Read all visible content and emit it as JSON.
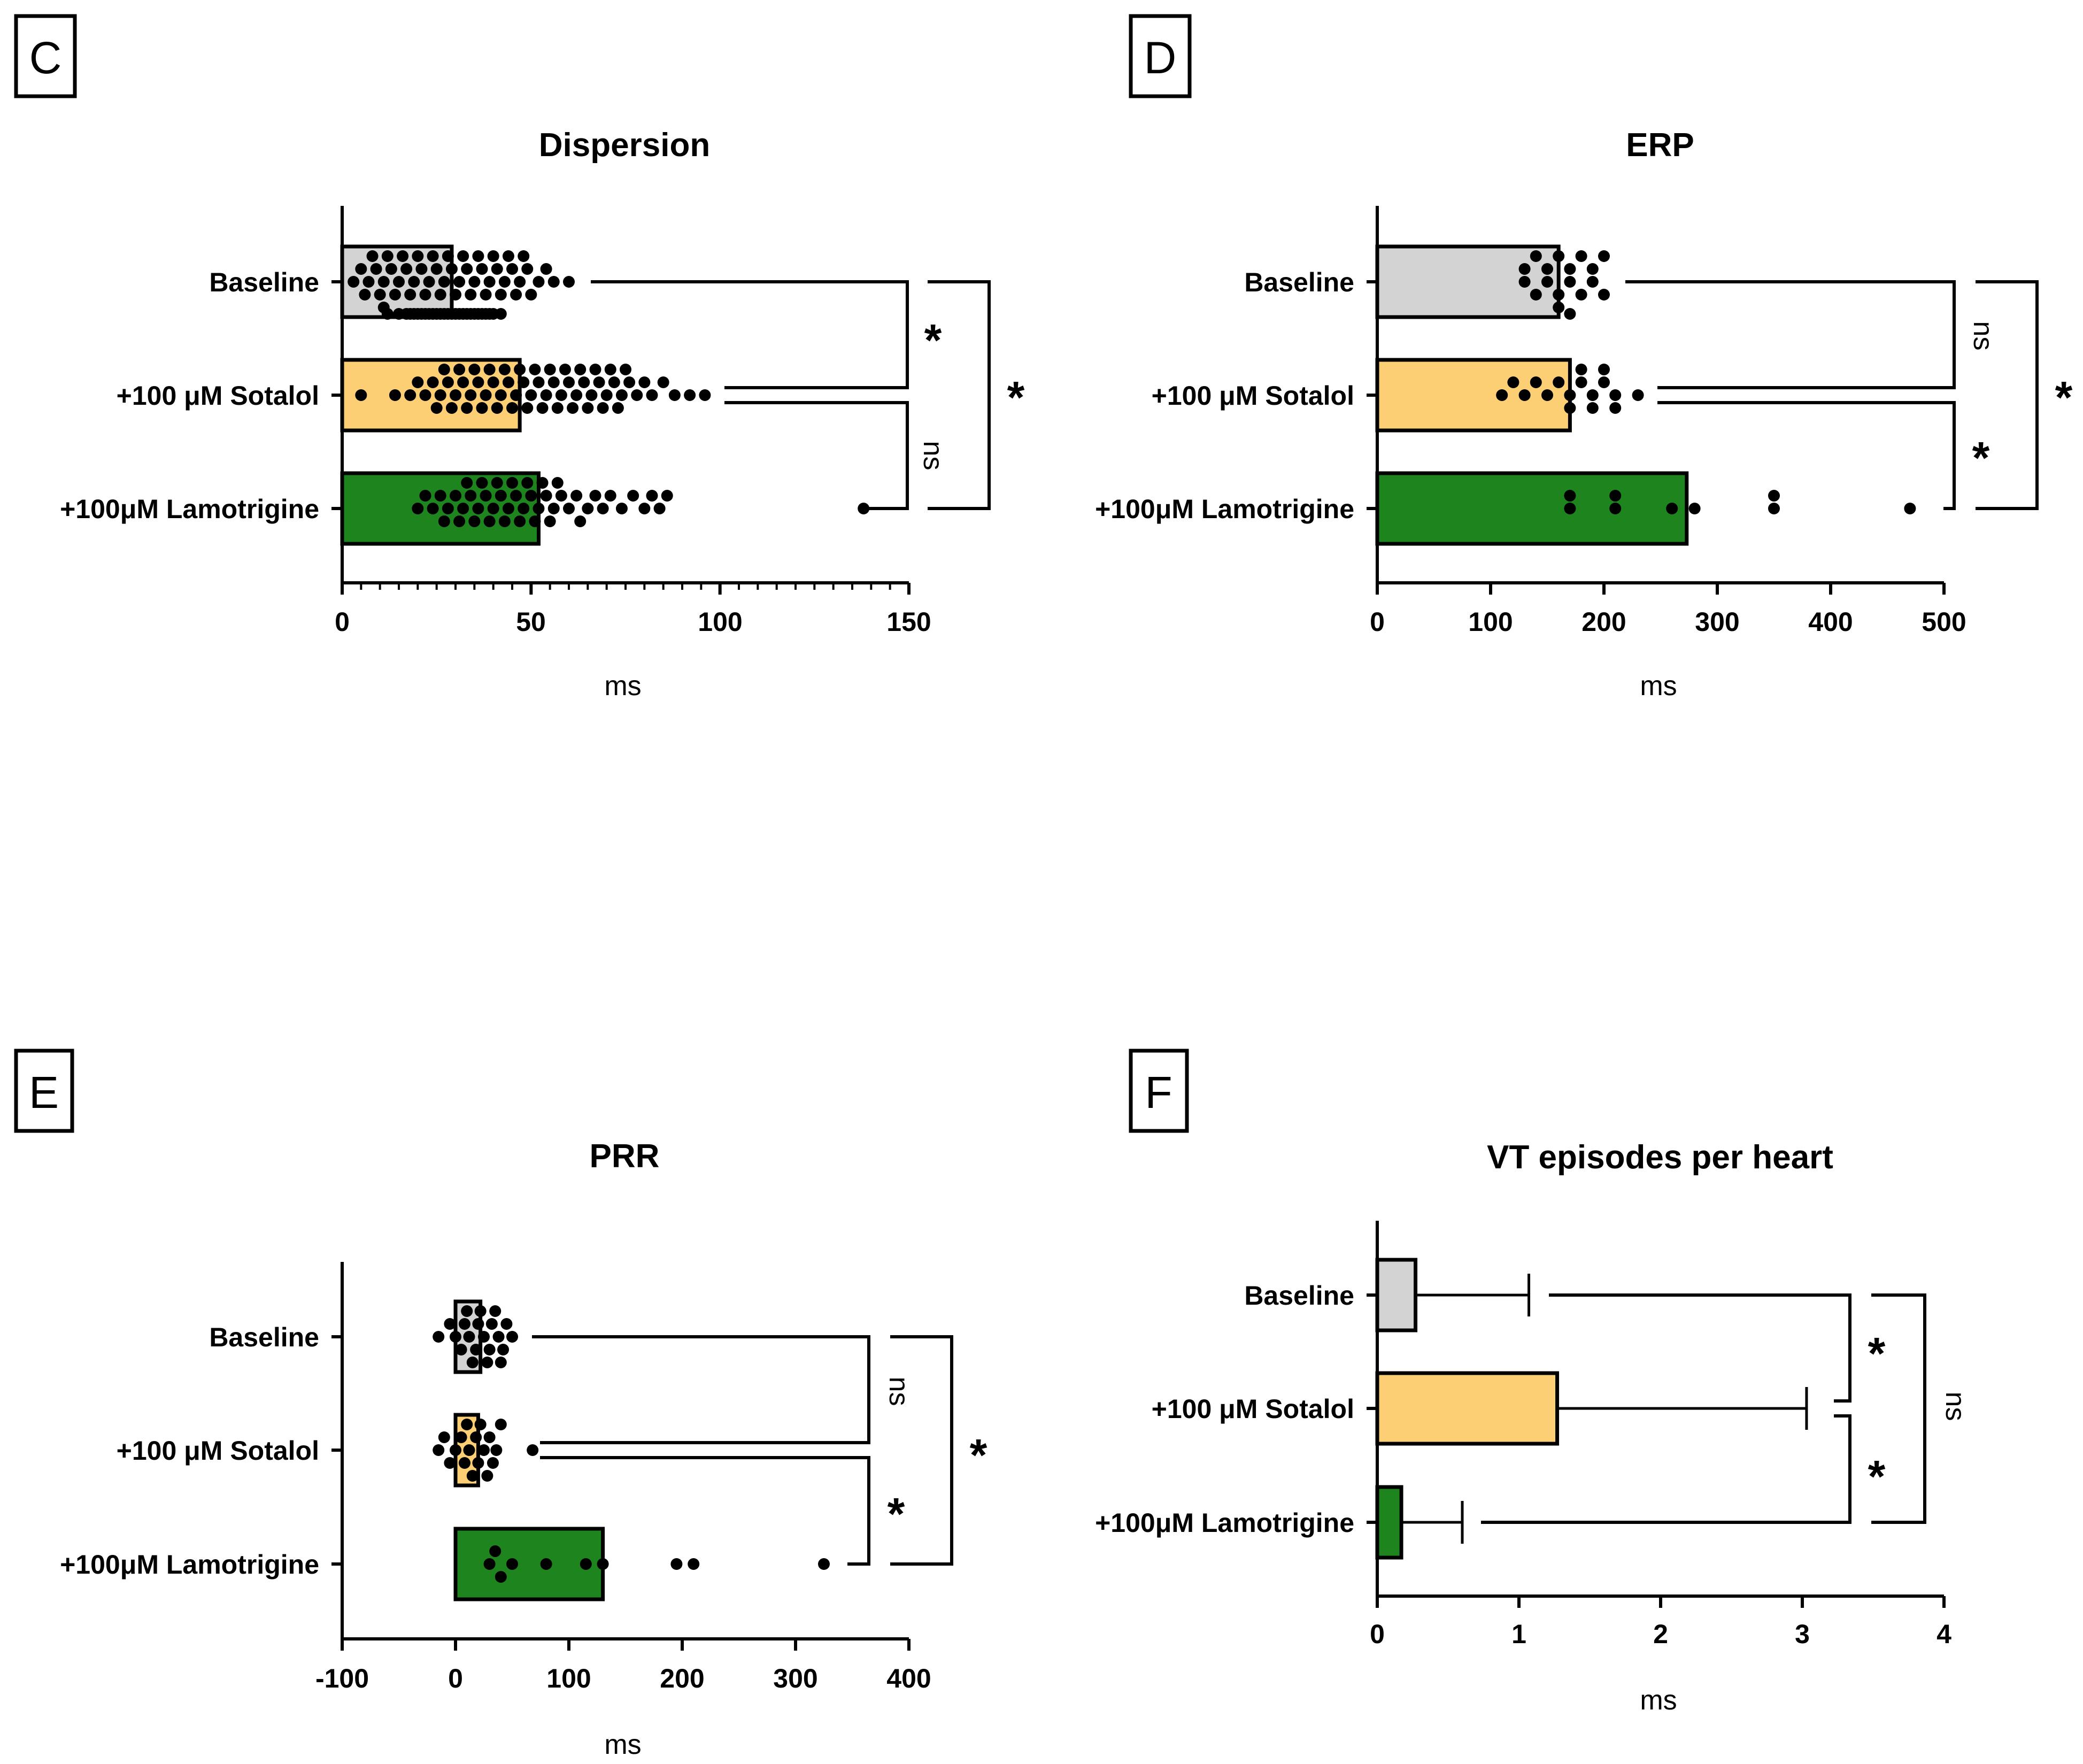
{
  "colors": {
    "baseline": "#d3d3d3",
    "sotalol": "#fdcf74",
    "lamotrigine": "#1e841e",
    "ink": "#000000"
  },
  "chart_data": [
    {
      "id": "C",
      "panel_label": "C",
      "type": "bar",
      "orientation": "horizontal",
      "title": "Dispersion",
      "xlabel": "ms",
      "ylabel": "",
      "xlim": [
        0,
        150
      ],
      "ticks": [
        "0",
        "50",
        "100",
        "150"
      ],
      "minor_ticks": true,
      "categories": [
        "Baseline",
        "+100 μM Sotalol",
        "+100μM Lamotrigine"
      ],
      "values": [
        29,
        47,
        52
      ],
      "points": [
        [
          3,
          5,
          6,
          7,
          8,
          9,
          10,
          11,
          11,
          12,
          12,
          13,
          14,
          15,
          15,
          16,
          17,
          17,
          18,
          18,
          19,
          19,
          20,
          20,
          21,
          21,
          22,
          22,
          23,
          23,
          24,
          24,
          25,
          25,
          26,
          26,
          27,
          27,
          28,
          28,
          29,
          29,
          30,
          30,
          31,
          31,
          32,
          32,
          33,
          33,
          34,
          34,
          35,
          35,
          36,
          36,
          37,
          37,
          38,
          38,
          39,
          39,
          40,
          40,
          41,
          42,
          42,
          43,
          44,
          45,
          46,
          47,
          48,
          49,
          50,
          52,
          54,
          56,
          60
        ],
        [
          5,
          14,
          18,
          20,
          22,
          24,
          25,
          26,
          27,
          28,
          29,
          30,
          31,
          32,
          33,
          34,
          35,
          36,
          37,
          38,
          39,
          40,
          41,
          42,
          43,
          44,
          45,
          46,
          47,
          48,
          49,
          50,
          51,
          52,
          53,
          54,
          55,
          56,
          57,
          58,
          59,
          60,
          61,
          62,
          63,
          64,
          65,
          66,
          67,
          68,
          69,
          70,
          71,
          72,
          73,
          74,
          75,
          76,
          78,
          80,
          82,
          85,
          88,
          92,
          96
        ],
        [
          20,
          22,
          24,
          26,
          27,
          28,
          30,
          31,
          32,
          33,
          34,
          35,
          36,
          37,
          38,
          39,
          40,
          41,
          42,
          43,
          44,
          45,
          46,
          47,
          48,
          49,
          50,
          51,
          52,
          53,
          54,
          55,
          56,
          57,
          58,
          60,
          62,
          63,
          65,
          67,
          69,
          71,
          74,
          77,
          80,
          82,
          84,
          86,
          138
        ]
      ],
      "comparisons": [
        {
          "from": "Baseline",
          "to": "+100 μM Sotalol",
          "label": "*"
        },
        {
          "from": "+100 μM Sotalol",
          "to": "+100μM Lamotrigine",
          "label": "ns"
        },
        {
          "from": "Baseline",
          "to": "+100μM Lamotrigine",
          "label": "*"
        }
      ]
    },
    {
      "id": "D",
      "panel_label": "D",
      "type": "bar",
      "orientation": "horizontal",
      "title": "ERP",
      "xlabel": "ms",
      "ylabel": "",
      "xlim": [
        0,
        500
      ],
      "ticks": [
        "0",
        "100",
        "200",
        "300",
        "400",
        "500"
      ],
      "minor_ticks": false,
      "categories": [
        "Baseline",
        "+100 μM Sotalol",
        "+100μM Lamotrigine"
      ],
      "values": [
        160,
        170,
        273
      ],
      "points": [
        [
          130,
          130,
          140,
          140,
          150,
          150,
          160,
          160,
          160,
          170,
          170,
          170,
          180,
          180,
          190,
          190,
          200,
          200
        ],
        [
          110,
          120,
          130,
          140,
          150,
          160,
          170,
          170,
          180,
          180,
          190,
          190,
          200,
          200,
          210,
          210,
          230
        ],
        [
          170,
          170,
          210,
          210,
          260,
          280,
          350,
          350,
          470
        ]
      ],
      "comparisons": [
        {
          "from": "Baseline",
          "to": "+100 μM Sotalol",
          "label": "ns"
        },
        {
          "from": "+100 μM Sotalol",
          "to": "+100μM Lamotrigine",
          "label": "*"
        },
        {
          "from": "Baseline",
          "to": "+100μM Lamotrigine",
          "label": "*"
        }
      ]
    },
    {
      "id": "E",
      "panel_label": "E",
      "type": "bar",
      "orientation": "horizontal",
      "title": "PRR",
      "xlabel": "ms",
      "ylabel": "",
      "xlim": [
        -100,
        400
      ],
      "ticks": [
        "-100",
        "0",
        "100",
        "200",
        "300",
        "400"
      ],
      "minor_ticks": false,
      "categories": [
        "Baseline",
        "+100 μM Sotalol",
        "+100μM Lamotrigine"
      ],
      "values": [
        22,
        20,
        130
      ],
      "points": [
        [
          -15,
          -5,
          0,
          5,
          8,
          10,
          12,
          15,
          18,
          20,
          22,
          25,
          28,
          30,
          32,
          35,
          38,
          40,
          42,
          45,
          50
        ],
        [
          -15,
          -10,
          -5,
          0,
          5,
          8,
          10,
          12,
          15,
          18,
          20,
          22,
          25,
          28,
          30,
          33,
          36,
          40,
          68
        ],
        [
          30,
          35,
          40,
          50,
          80,
          115,
          130,
          195,
          210,
          325
        ]
      ],
      "comparisons": [
        {
          "from": "Baseline",
          "to": "+100 μM Sotalol",
          "label": "ns"
        },
        {
          "from": "+100 μM Sotalol",
          "to": "+100μM Lamotrigine",
          "label": "*"
        },
        {
          "from": "Baseline",
          "to": "+100μM Lamotrigine",
          "label": "*"
        }
      ]
    },
    {
      "id": "F",
      "panel_label": "F",
      "type": "bar",
      "orientation": "horizontal",
      "title": "VT episodes per heart",
      "xlabel": "ms",
      "ylabel": "",
      "xlim": [
        0,
        4
      ],
      "ticks": [
        "0",
        "1",
        "2",
        "3",
        "4"
      ],
      "minor_ticks": false,
      "categories": [
        "Baseline",
        "+100 μM Sotalol",
        "+100μM Lamotrigine"
      ],
      "values": [
        0.27,
        1.27,
        0.17
      ],
      "errors": [
        0.8,
        1.76,
        0.43
      ],
      "comparisons": [
        {
          "from": "Baseline",
          "to": "+100 μM Sotalol",
          "label": "*"
        },
        {
          "from": "+100 μM Sotalol",
          "to": "+100μM Lamotrigine",
          "label": "*"
        },
        {
          "from": "Baseline",
          "to": "+100μM Lamotrigine",
          "label": "ns"
        }
      ]
    }
  ]
}
